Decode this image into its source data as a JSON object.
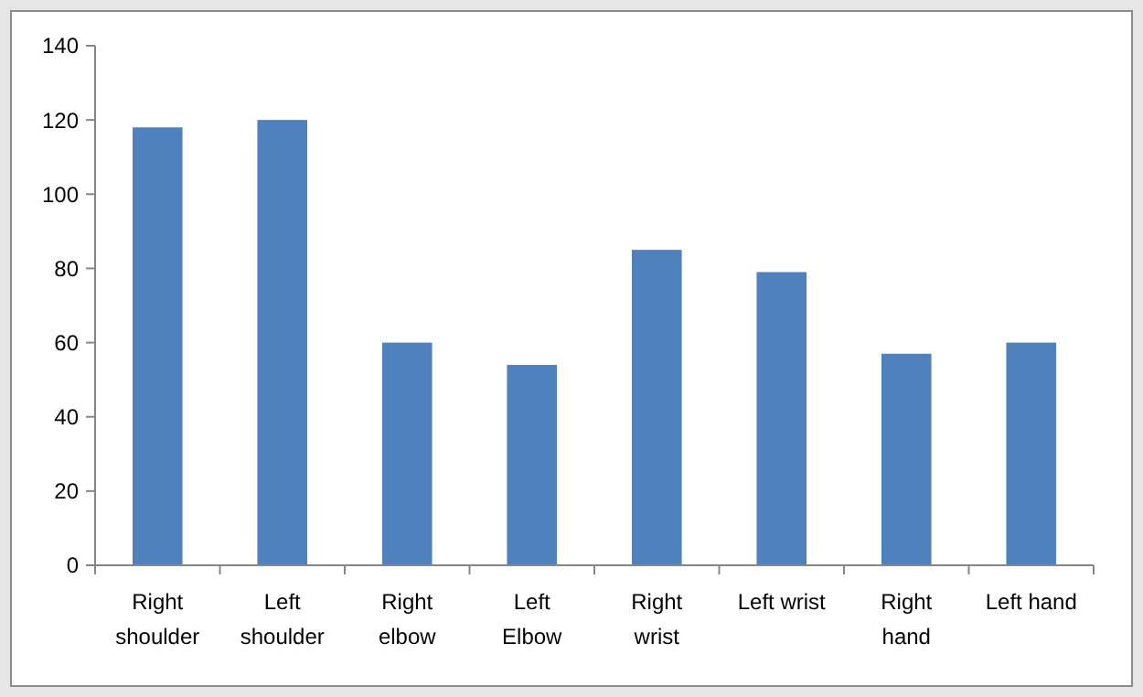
{
  "chart_data": {
    "type": "bar",
    "categories": [
      "Right shoulder",
      "Left shoulder",
      "Right elbow",
      "Left Elbow",
      "Right wrist",
      "Left wrist",
      "Right hand",
      "Left hand"
    ],
    "values": [
      118,
      120,
      60,
      54,
      85,
      79,
      57,
      60
    ],
    "color": "#4f81bd",
    "ylim": [
      0,
      140
    ],
    "yticks": [
      0,
      20,
      40,
      60,
      80,
      100,
      120,
      140
    ],
    "grid": false
  }
}
